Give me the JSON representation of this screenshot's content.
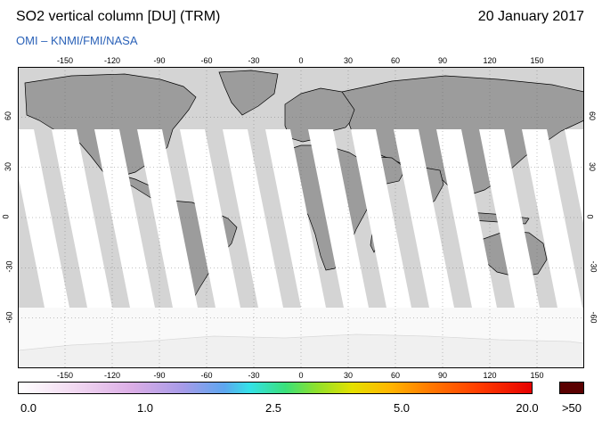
{
  "header": {
    "title": "SO2 vertical column [DU] (TRM)",
    "date": "20 January 2017",
    "credit": "OMI  –  KNMI/FMI/NASA"
  },
  "map": {
    "lon_ticks": [
      "-150",
      "-120",
      "-90",
      "-60",
      "-30",
      "0",
      "30",
      "60",
      "90",
      "120",
      "150"
    ],
    "lat_ticks": [
      "60",
      "30",
      "0",
      "-30",
      "-60"
    ],
    "colors": {
      "ocean": "#d4d4d4",
      "land": "#9c9c9c",
      "swath": "#ffffff",
      "coast": "#000000"
    }
  },
  "colorbar": {
    "labels": [
      "0.0",
      "1.0",
      "2.5",
      "5.0",
      "20.0"
    ],
    "max_label": ">50"
  }
}
